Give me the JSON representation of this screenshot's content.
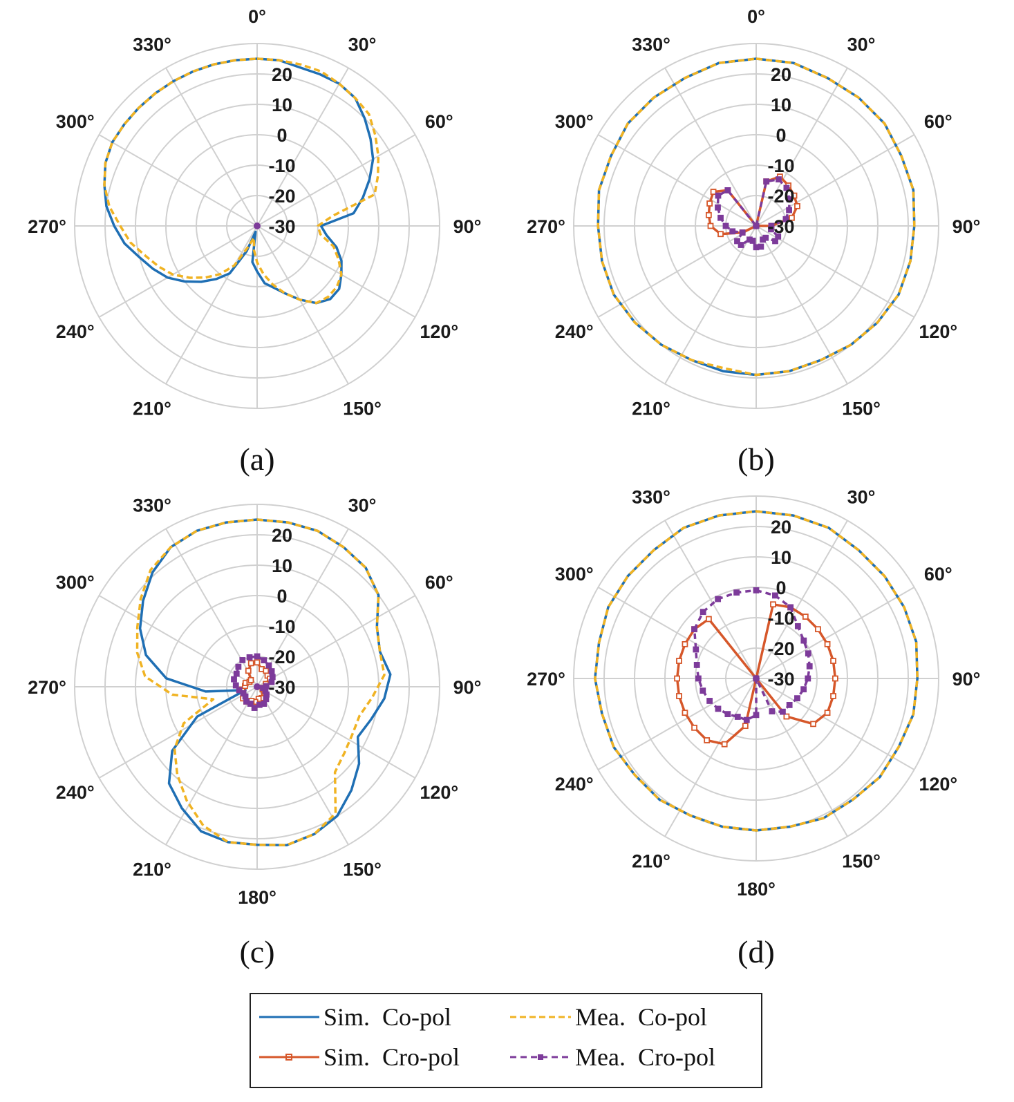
{
  "colors": {
    "sim_co": "#1f6fb4",
    "mea_co": "#f0b323",
    "sim_cro": "#d6572a",
    "mea_cro": "#7d3b9a",
    "grid": "#d0d0d0"
  },
  "legend": {
    "sim_co": "Sim.  Co-pol",
    "mea_co": "Mea.  Co-pol",
    "sim_cro": "Sim.  Cro-pol",
    "mea_cro": "Mea.  Cro-pol"
  },
  "chart_data": [
    {
      "type": "polar-line",
      "caption": "(a)",
      "angle_ticks": [
        "0°",
        "30°",
        "60°",
        "90°",
        "120°",
        "150°",
        "",
        "210°",
        "240°",
        "270°",
        "300°",
        "330°"
      ],
      "r_ticks": [
        "20",
        "10",
        "0",
        "-10",
        "-20",
        "-30"
      ],
      "rlim": [
        -30,
        30
      ],
      "theta_step_deg": 15,
      "series": [
        {
          "key": "sim_co",
          "values": [
            25,
            25,
            24,
            24,
            24,
            23,
            20,
            17,
            14,
            10,
            6,
            2,
            -9,
            -7,
            -3,
            0,
            2,
            4,
            4,
            2,
            -2,
            -6,
            -9,
            -11,
            -15,
            -18,
            -28,
            -21,
            -12,
            -8,
            -4,
            0,
            4,
            7,
            10,
            14,
            17,
            20,
            22,
            24,
            25,
            25,
            25,
            25,
            25,
            25,
            25,
            25
          ]
        },
        {
          "key": "mea_co",
          "values": [
            25,
            25,
            25,
            25,
            24,
            23,
            22,
            19,
            16,
            13,
            10,
            -5,
            -10,
            -9,
            -4,
            -1,
            2,
            3,
            3,
            2,
            -2,
            -6,
            -10,
            -14,
            -18,
            -22,
            -26,
            -23,
            -15,
            -10,
            -6,
            -2,
            2,
            5,
            8,
            12,
            15,
            19,
            22,
            24,
            25,
            25,
            25,
            25,
            25,
            25,
            25,
            25
          ]
        }
      ]
    },
    {
      "type": "polar-line",
      "caption": "(b)",
      "angle_ticks": [
        "0°",
        "30°",
        "60°",
        "90°",
        "120°",
        "150°",
        "",
        "210°",
        "240°",
        "270°",
        "300°",
        "330°"
      ],
      "r_ticks": [
        "20",
        "10",
        "0",
        "-10",
        "-20",
        "-30"
      ],
      "rlim": [
        -30,
        30
      ],
      "theta_step_deg": 15,
      "series": [
        {
          "key": "sim_co",
          "values": [
            25,
            25,
            24,
            24,
            24,
            23,
            23,
            22,
            22,
            22,
            21,
            20,
            19,
            19,
            19,
            19,
            19,
            20,
            21,
            22,
            22,
            22,
            23,
            23,
            24,
            24,
            24,
            25
          ]
        },
        {
          "key": "mea_co",
          "values": [
            25,
            25,
            24,
            24,
            24,
            23,
            23,
            22,
            22,
            22,
            21,
            20,
            19,
            19,
            19,
            18,
            19,
            20,
            21,
            22,
            22,
            22,
            23,
            23,
            24,
            24,
            24,
            25
          ]
        },
        {
          "key": "sim_cro",
          "values": [
            -30,
            -15,
            -12,
            -13,
            -14,
            -15,
            -18,
            -25,
            -30,
            -30,
            -30,
            -30,
            -30,
            -30,
            -30,
            -30,
            -30,
            -30,
            -30,
            -25,
            -18,
            -15,
            -14,
            -13,
            -12,
            -15,
            -30,
            -30
          ]
        },
        {
          "key": "mea_cro",
          "values": [
            -30,
            -15,
            -13,
            -14,
            -16,
            -18,
            -20,
            -25,
            -25,
            -22,
            -22,
            -25,
            -25,
            -23,
            -23,
            -25,
            -25,
            -22,
            -22,
            -25,
            -22,
            -20,
            -18,
            -16,
            -14,
            -15,
            -30,
            -30
          ]
        }
      ]
    },
    {
      "type": "polar-line",
      "caption": "(c)",
      "angle_ticks": [
        "",
        "30°",
        "60°",
        "90°",
        "120°",
        "150°",
        "180°",
        "210°",
        "240°",
        "270°",
        "300°",
        "330°"
      ],
      "r_ticks": [
        "20",
        "10",
        "0",
        "-10",
        "-20",
        "-30"
      ],
      "rlim": [
        -30,
        30
      ],
      "theta_step_deg": 15,
      "series": [
        {
          "key": "sim_co",
          "values": [
            25,
            25,
            25,
            24,
            23,
            20,
            14,
            12,
            14,
            12,
            9,
            7,
            12,
            16,
            20,
            22,
            23,
            22,
            22,
            21,
            17,
            13,
            5,
            -8,
            -26,
            -13,
            0,
            8,
            13,
            17,
            21,
            24,
            25,
            25
          ]
        },
        {
          "key": "mea_co",
          "values": [
            25,
            25,
            25,
            24,
            23,
            20,
            14,
            12,
            12,
            8,
            5,
            5,
            6,
            8,
            19,
            22,
            23,
            22,
            22,
            19,
            14,
            9,
            4,
            -3,
            -15,
            -2,
            7,
            11,
            14,
            18,
            22,
            24,
            25,
            25
          ]
        },
        {
          "key": "sim_cro",
          "values": [
            -22,
            -24,
            -24,
            -25,
            -25,
            -27,
            -27,
            -28,
            -28,
            -27,
            -26,
            -26,
            -26,
            -25,
            -25,
            -24,
            -24,
            -25,
            -25,
            -26,
            -26,
            -27,
            -27,
            -24,
            -22
          ]
        },
        {
          "key": "mea_cro",
          "values": [
            -20,
            -21,
            -22,
            -23,
            -24,
            -25,
            -27,
            -28,
            -27,
            -26,
            -25,
            -24,
            -24,
            -23,
            -24,
            -24,
            -25,
            -25,
            -24,
            -23,
            -22,
            -22,
            -21,
            -20,
            -20
          ]
        }
      ]
    },
    {
      "type": "polar-line",
      "caption": "(d)",
      "angle_ticks": [
        "",
        "30°",
        "60°",
        "90°",
        "120°",
        "150°",
        "180°",
        "210°",
        "240°",
        "270°",
        "300°",
        "330°"
      ],
      "r_ticks": [
        "20",
        "10",
        "0",
        "-10",
        "-20",
        "-30"
      ],
      "rlim": [
        -30,
        30
      ],
      "theta_step_deg": 15,
      "series": [
        {
          "key": "sim_co",
          "values": [
            25,
            25,
            25,
            24,
            24,
            24,
            24,
            23,
            23,
            22,
            22,
            21,
            21,
            20,
            20,
            20,
            20,
            21,
            21,
            22,
            22,
            23,
            23,
            24,
            24,
            24,
            25,
            25
          ]
        },
        {
          "key": "mea_co",
          "values": [
            25,
            25,
            25,
            24,
            24,
            24,
            24,
            23,
            23,
            22,
            22,
            21,
            21,
            20,
            20,
            20,
            20,
            21,
            21,
            22,
            22,
            23,
            23,
            24,
            24,
            24,
            25,
            25
          ]
        },
        {
          "key": "sim_cro",
          "values": [
            -30,
            -5,
            -4,
            -4,
            -4,
            -4,
            -4,
            -4,
            -4,
            -4,
            -6,
            -14,
            -30,
            -30,
            -30,
            -14,
            -6,
            -4,
            -4,
            -4,
            -4,
            -4,
            -4,
            -4,
            -4,
            -5,
            -30,
            -30
          ]
        },
        {
          "key": "mea_cro",
          "values": [
            -1,
            -2,
            -4,
            -8,
            -10,
            -11,
            -12,
            -13,
            -14,
            -15,
            -16,
            -16,
            -18,
            -30,
            -18,
            -16,
            -16,
            -15,
            -14,
            -13,
            -12,
            -11,
            -10,
            -8,
            -4,
            -2,
            -1,
            -1
          ]
        }
      ]
    }
  ]
}
